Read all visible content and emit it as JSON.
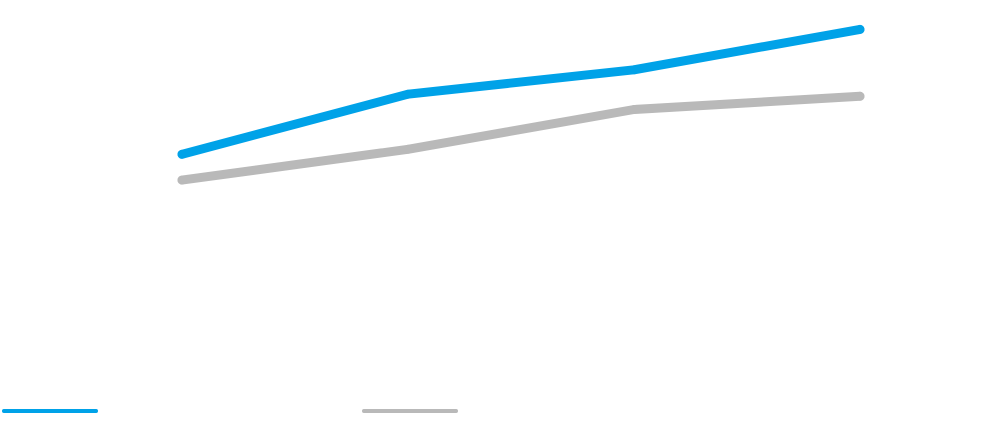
{
  "chart_data": {
    "type": "line",
    "title": "",
    "xlabel": "",
    "ylabel": "",
    "x": [
      1,
      2,
      3,
      4
    ],
    "xlim": [
      1,
      4
    ],
    "ylim": [
      0,
      100
    ],
    "grid": false,
    "legend": "bottom-left",
    "series": [
      {
        "color": "#00a2e8",
        "values": [
          56.9,
          73.7,
          80.5,
          91.8
        ]
      },
      {
        "color": "#b9b9b9",
        "values": [
          49.7,
          58.3,
          69.4,
          73.1
        ]
      }
    ]
  }
}
